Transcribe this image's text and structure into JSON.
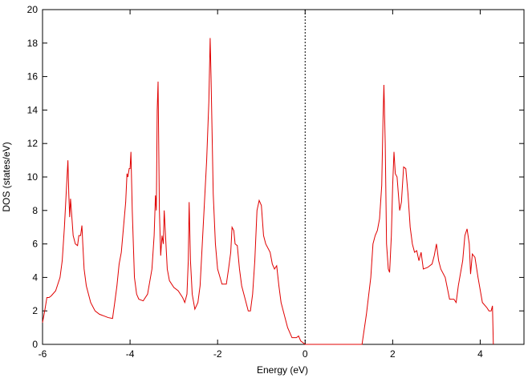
{
  "chart_data": {
    "type": "line",
    "xlabel": "Energy (eV)",
    "ylabel": "DOS (states/eV)",
    "color": "#e00000",
    "xlim": [
      -6,
      5
    ],
    "ylim": [
      0,
      20
    ],
    "xticks": [
      -6,
      -4,
      -2,
      0,
      2,
      4
    ],
    "yticks": [
      0,
      2,
      4,
      6,
      8,
      10,
      12,
      14,
      16,
      18,
      20
    ],
    "reference_x": 0,
    "x": [
      -6,
      -5.95,
      -5.9,
      -5.85,
      -5.8,
      -5.7,
      -5.6,
      -5.55,
      -5.5,
      -5.45,
      -5.42,
      -5.4,
      -5.38,
      -5.36,
      -5.33,
      -5.3,
      -5.25,
      -5.2,
      -5.17,
      -5.13,
      -5.1,
      -5.08,
      -5.05,
      -5.0,
      -4.9,
      -4.8,
      -4.7,
      -4.6,
      -4.5,
      -4.4,
      -4.35,
      -4.3,
      -4.25,
      -4.2,
      -4.15,
      -4.1,
      -4.07,
      -4.05,
      -4.02,
      -4.0,
      -3.98,
      -3.95,
      -3.9,
      -3.85,
      -3.8,
      -3.7,
      -3.6,
      -3.5,
      -3.45,
      -3.42,
      -3.4,
      -3.38,
      -3.36,
      -3.33,
      -3.3,
      -3.27,
      -3.24,
      -3.22,
      -3.2,
      -3.15,
      -3.1,
      -3.0,
      -2.9,
      -2.8,
      -2.75,
      -2.7,
      -2.67,
      -2.65,
      -2.62,
      -2.58,
      -2.52,
      -2.45,
      -2.4,
      -2.35,
      -2.3,
      -2.25,
      -2.2,
      -2.17,
      -2.15,
      -2.1,
      -2.05,
      -2.0,
      -1.9,
      -1.8,
      -1.75,
      -1.7,
      -1.67,
      -1.63,
      -1.6,
      -1.55,
      -1.5,
      -1.45,
      -1.35,
      -1.3,
      -1.25,
      -1.2,
      -1.15,
      -1.1,
      -1.05,
      -1.0,
      -0.95,
      -0.9,
      -0.8,
      -0.75,
      -0.7,
      -0.65,
      -0.6,
      -0.55,
      -0.5,
      -0.4,
      -0.3,
      -0.2,
      -0.15,
      -0.1,
      0,
      1.3,
      1.4,
      1.5,
      1.55,
      1.6,
      1.65,
      1.7,
      1.75,
      1.78,
      1.8,
      1.83,
      1.86,
      1.9,
      1.93,
      1.97,
      2.0,
      2.03,
      2.06,
      2.1,
      2.13,
      2.16,
      2.2,
      2.25,
      2.3,
      2.35,
      2.4,
      2.45,
      2.5,
      2.55,
      2.6,
      2.65,
      2.7,
      2.8,
      2.9,
      2.95,
      3.0,
      3.05,
      3.1,
      3.2,
      3.3,
      3.4,
      3.45,
      3.5,
      3.6,
      3.65,
      3.7,
      3.75,
      3.78,
      3.82,
      3.88,
      3.95,
      4.05,
      4.15,
      4.2,
      4.25,
      4.28,
      4.3
    ],
    "values": [
      1.3,
      2.0,
      2.8,
      2.8,
      2.9,
      3.2,
      4.0,
      5.0,
      7.0,
      9.5,
      11.0,
      9.0,
      7.6,
      8.7,
      7.6,
      6.5,
      6.0,
      5.9,
      6.5,
      6.5,
      7.1,
      6.0,
      4.5,
      3.5,
      2.5,
      2.0,
      1.8,
      1.7,
      1.6,
      1.55,
      2.5,
      3.5,
      4.8,
      5.5,
      7.0,
      8.5,
      10.2,
      10.0,
      10.5,
      10.5,
      11.5,
      8.0,
      4.0,
      3.0,
      2.7,
      2.6,
      3.0,
      4.5,
      6.5,
      8.9,
      8.0,
      14.0,
      15.7,
      8.0,
      5.3,
      6.5,
      6.0,
      8.0,
      7.0,
      4.5,
      3.8,
      3.4,
      3.2,
      2.8,
      2.5,
      3.0,
      5.0,
      8.5,
      5.0,
      3.0,
      2.1,
      2.5,
      3.5,
      6.0,
      8.5,
      11.0,
      14.5,
      18.3,
      16.0,
      9.0,
      6.0,
      4.5,
      3.6,
      3.6,
      4.5,
      5.5,
      7.0,
      6.8,
      6.0,
      5.9,
      4.5,
      3.5,
      2.5,
      2.0,
      2.0,
      3.0,
      5.0,
      8.0,
      8.6,
      8.3,
      6.5,
      6.0,
      5.5,
      4.8,
      4.5,
      4.7,
      3.5,
      2.5,
      2.0,
      1.0,
      0.4,
      0.4,
      0.5,
      0.2,
      0,
      0,
      1.8,
      4.0,
      6.0,
      6.5,
      6.8,
      7.5,
      9.5,
      13.5,
      15.5,
      12.0,
      6.0,
      4.5,
      4.3,
      6.5,
      9.5,
      11.5,
      10.2,
      10.0,
      9.0,
      8.0,
      8.5,
      10.6,
      10.5,
      9.0,
      7.0,
      6.0,
      5.5,
      5.6,
      5.0,
      5.5,
      4.5,
      4.6,
      4.8,
      5.3,
      6.0,
      5.0,
      4.5,
      4.0,
      2.7,
      2.7,
      2.5,
      3.5,
      5.0,
      6.5,
      6.9,
      6.0,
      4.2,
      5.4,
      5.2,
      4.0,
      2.5,
      2.2,
      2.0,
      2.0,
      2.3,
      0
    ]
  }
}
